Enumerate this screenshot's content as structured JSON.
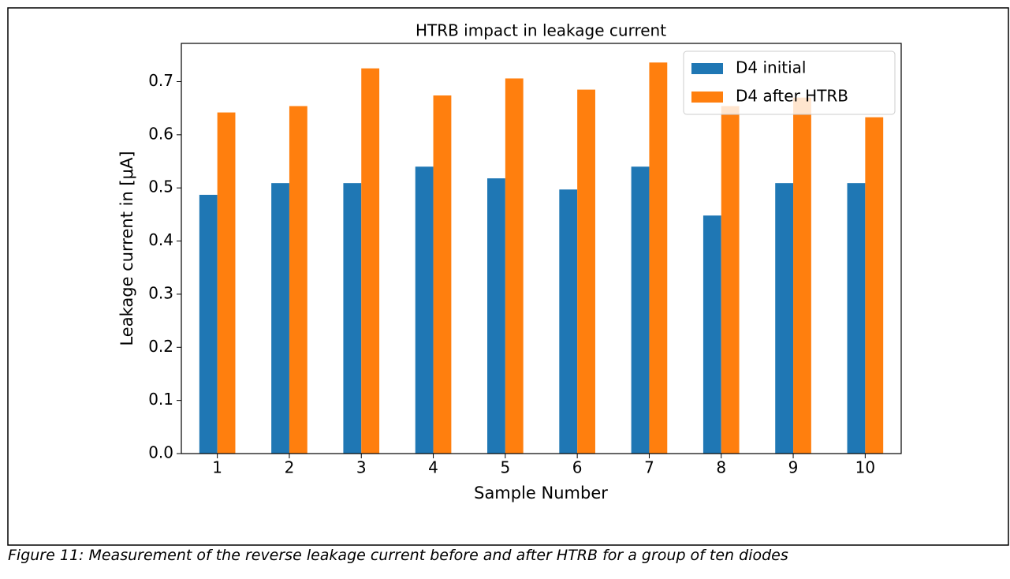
{
  "chart_data": {
    "type": "bar",
    "title": "HTRB impact in leakage current",
    "xlabel": "Sample Number",
    "ylabel": "Leakage current in [μA]",
    "categories": [
      "1",
      "2",
      "3",
      "4",
      "5",
      "6",
      "7",
      "8",
      "9",
      "10"
    ],
    "series": [
      {
        "name": "D4 initial",
        "color": "#1f77b4",
        "values": [
          0.487,
          0.509,
          0.509,
          0.54,
          0.518,
          0.497,
          0.54,
          0.448,
          0.509,
          0.509
        ]
      },
      {
        "name": "D4 after HTRB",
        "color": "#ff7f0e",
        "values": [
          0.642,
          0.654,
          0.725,
          0.674,
          0.706,
          0.685,
          0.736,
          0.654,
          0.67,
          0.633
        ]
      }
    ],
    "ylim": [
      0,
      0.772
    ],
    "yticks": [
      {
        "value": 0,
        "label": "0.0"
      },
      0.1,
      0.2,
      0.3,
      0.4,
      0.5,
      0.6,
      0.7
    ],
    "legend": "upper right"
  },
  "caption": "Figure 11: Measurement of the reverse leakage current before and after HTRB for a group of ten diodes"
}
